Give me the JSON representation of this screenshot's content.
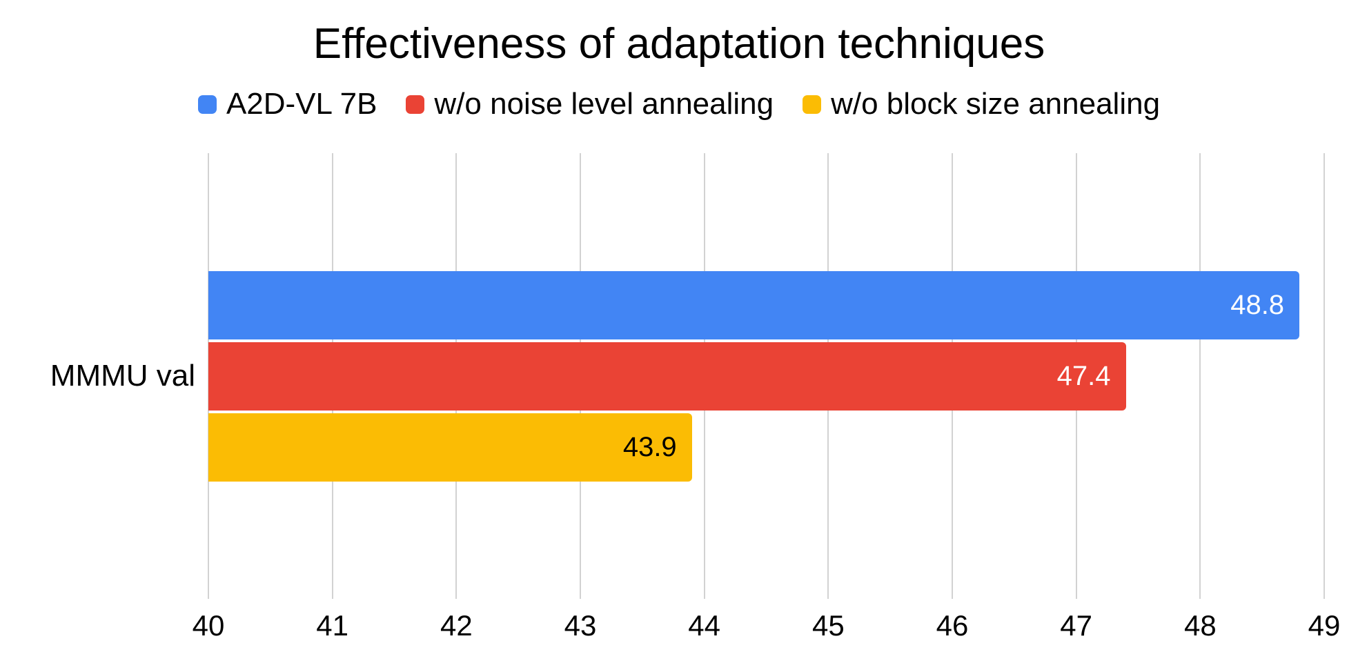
{
  "chart_data": {
    "type": "bar",
    "orientation": "horizontal",
    "title": "Effectiveness of adaptation techniques",
    "categories": [
      "MMMU val"
    ],
    "series": [
      {
        "name": "A2D-VL 7B",
        "color": "#4285F4",
        "label_color": "#FFFFFF",
        "values": [
          48.8
        ]
      },
      {
        "name": "w/o noise level annealing",
        "color": "#EA4335",
        "label_color": "#FFFFFF",
        "values": [
          47.4
        ]
      },
      {
        "name": "w/o block size annealing",
        "color": "#FBBC04",
        "label_color": "#000000",
        "values": [
          43.9
        ]
      }
    ],
    "xlim": [
      40,
      49
    ],
    "xticks": [
      40,
      41,
      42,
      43,
      44,
      45,
      46,
      47,
      48,
      49
    ],
    "grid": "vertical",
    "legend_position": "top",
    "gridline_color": "#d2d2d2",
    "background_color": "#ffffff",
    "text_color": "#000000"
  }
}
